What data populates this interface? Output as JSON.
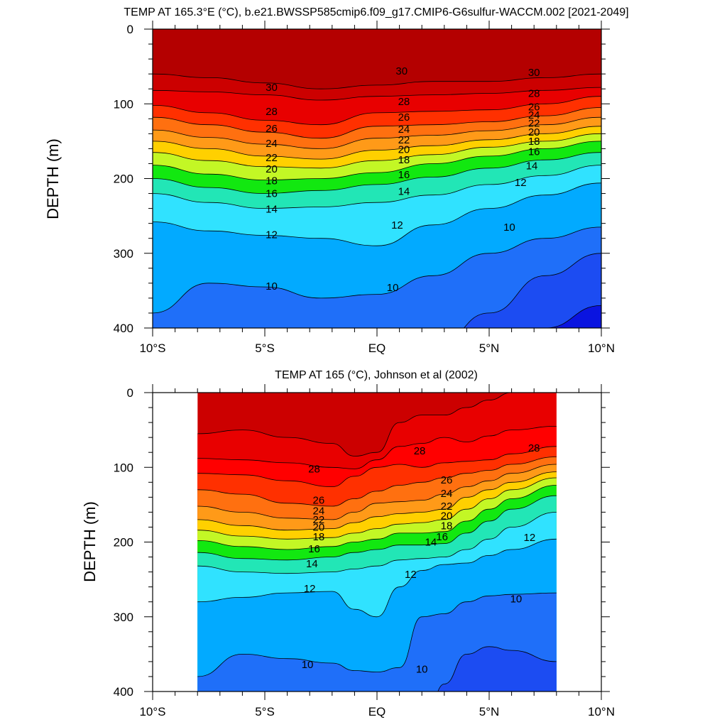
{
  "chart_data": [
    {
      "type": "heatmap",
      "subtype": "filled-contour-depth-latitude-section",
      "title": "TEMP AT 165.3°E (°C), b.e21.BWSSP585cmip6.f09_g17.CMIP6-G6sulfur-WACCM.002 [2021-2049]",
      "xlabel": "",
      "ylabel": "DEPTH (m)",
      "xlim": [
        -10,
        10
      ],
      "ylim": [
        400,
        0
      ],
      "y_inverted": true,
      "xticks": [
        -10,
        -5,
        0,
        5,
        10
      ],
      "xtick_labels": [
        "10°S",
        "5°S",
        "EQ",
        "5°N",
        "10°N"
      ],
      "yticks": [
        0,
        100,
        200,
        300,
        400
      ],
      "ytick_labels": [
        "0",
        "100",
        "200",
        "300",
        "400"
      ],
      "data_extent_x": [
        -10,
        10
      ],
      "contour_interval_degC": 1,
      "isotherm_depths_m": {
        "x": [
          -10,
          -7.5,
          -5,
          -2.5,
          0,
          2.5,
          5,
          7.5,
          10
        ],
        "T31": [
          60,
          65,
          72,
          80,
          75,
          70,
          70,
          65,
          60
        ],
        "T30": [
          82,
          84,
          88,
          95,
          90,
          88,
          86,
          82,
          78
        ],
        "T28": [
          102,
          112,
          122,
          128,
          112,
          110,
          108,
          100,
          90
        ],
        "T26": [
          118,
          128,
          138,
          146,
          130,
          128,
          124,
          116,
          105
        ],
        "T24": [
          135,
          145,
          154,
          160,
          146,
          142,
          136,
          128,
          118
        ],
        "T22": [
          150,
          160,
          170,
          174,
          162,
          156,
          148,
          140,
          130
        ],
        "T20": [
          165,
          176,
          184,
          186,
          176,
          168,
          158,
          150,
          140
        ],
        "T18": [
          182,
          194,
          202,
          200,
          192,
          180,
          170,
          160,
          150
        ],
        "T16": [
          200,
          212,
          220,
          216,
          208,
          198,
          186,
          175,
          165
        ],
        "T14": [
          220,
          232,
          240,
          238,
          232,
          222,
          208,
          196,
          182
        ],
        "T12": [
          258,
          270,
          276,
          280,
          290,
          262,
          240,
          222,
          206
        ],
        "T10": [
          380,
          340,
          345,
          360,
          355,
          330,
          300,
          280,
          265
        ],
        "T9": [
          800,
          800,
          800,
          800,
          800,
          430,
          380,
          330,
          300
        ],
        "T8": [
          800,
          800,
          800,
          800,
          800,
          800,
          800,
          400,
          370
        ]
      },
      "contour_labels": [
        {
          "value": "30",
          "x": -4.7,
          "y": 78
        },
        {
          "value": "28",
          "x": -4.7,
          "y": 110
        },
        {
          "value": "26",
          "x": -4.7,
          "y": 133
        },
        {
          "value": "24",
          "x": -4.7,
          "y": 153
        },
        {
          "value": "22",
          "x": -4.7,
          "y": 172
        },
        {
          "value": "20",
          "x": -4.7,
          "y": 187
        },
        {
          "value": "18",
          "x": -4.7,
          "y": 203
        },
        {
          "value": "16",
          "x": -4.7,
          "y": 220
        },
        {
          "value": "14",
          "x": -4.7,
          "y": 241
        },
        {
          "value": "12",
          "x": -4.7,
          "y": 275
        },
        {
          "value": "10",
          "x": -4.7,
          "y": 344
        },
        {
          "value": "30",
          "x": 1.1,
          "y": 56
        },
        {
          "value": "28",
          "x": 1.2,
          "y": 97
        },
        {
          "value": "26",
          "x": 1.2,
          "y": 118
        },
        {
          "value": "24",
          "x": 1.2,
          "y": 134
        },
        {
          "value": "22",
          "x": 1.2,
          "y": 148
        },
        {
          "value": "20",
          "x": 1.2,
          "y": 161
        },
        {
          "value": "18",
          "x": 1.2,
          "y": 175
        },
        {
          "value": "16",
          "x": 1.2,
          "y": 195
        },
        {
          "value": "14",
          "x": 1.2,
          "y": 217
        },
        {
          "value": "12",
          "x": 0.9,
          "y": 262
        },
        {
          "value": "10",
          "x": 0.7,
          "y": 346
        },
        {
          "value": "30",
          "x": 7.0,
          "y": 58
        },
        {
          "value": "28",
          "x": 7.0,
          "y": 86
        },
        {
          "value": "26",
          "x": 7.0,
          "y": 104
        },
        {
          "value": "24",
          "x": 7.0,
          "y": 115
        },
        {
          "value": "22",
          "x": 7.0,
          "y": 126
        },
        {
          "value": "20",
          "x": 7.0,
          "y": 138
        },
        {
          "value": "18",
          "x": 7.0,
          "y": 150
        },
        {
          "value": "16",
          "x": 7.0,
          "y": 164
        },
        {
          "value": "14",
          "x": 6.9,
          "y": 183
        },
        {
          "value": "12",
          "x": 6.4,
          "y": 205
        },
        {
          "value": "10",
          "x": 5.9,
          "y": 265
        }
      ]
    },
    {
      "type": "heatmap",
      "subtype": "filled-contour-depth-latitude-section",
      "title": "TEMP AT 165 (°C), Johnson et al (2002)",
      "xlabel": "",
      "ylabel": "DEPTH (m)",
      "xlim": [
        -10,
        10
      ],
      "ylim": [
        400,
        0
      ],
      "y_inverted": true,
      "xticks": [
        -10,
        -5,
        0,
        5,
        10
      ],
      "xtick_labels": [
        "10°S",
        "5°S",
        "EQ",
        "5°N",
        "10°N"
      ],
      "yticks": [
        0,
        100,
        200,
        300,
        400
      ],
      "ytick_labels": [
        "0",
        "100",
        "200",
        "300",
        "400"
      ],
      "data_extent_x": [
        -8,
        8
      ],
      "contour_interval_degC": 1,
      "isotherm_depths_m": {
        "x": [
          -8,
          -6,
          -4,
          -2,
          -1,
          0,
          1,
          2,
          3,
          4,
          5,
          6,
          8
        ],
        "T30": [
          55,
          50,
          60,
          68,
          85,
          80,
          40,
          30,
          30,
          20,
          10,
          0,
          0
        ],
        "T29": [
          88,
          90,
          94,
          100,
          102,
          90,
          72,
          68,
          60,
          66,
          58,
          50,
          45
        ],
        "T28": [
          108,
          110,
          118,
          126,
          112,
          100,
          96,
          100,
          94,
          92,
          90,
          82,
          72
        ],
        "T26": [
          130,
          136,
          148,
          152,
          142,
          132,
          124,
          120,
          114,
          108,
          104,
          96,
          86
        ],
        "T24": [
          152,
          160,
          168,
          170,
          160,
          148,
          146,
          144,
          136,
          126,
          118,
          108,
          96
        ],
        "T22": [
          170,
          178,
          184,
          182,
          174,
          166,
          162,
          160,
          156,
          140,
          130,
          120,
          106
        ],
        "T20": [
          184,
          192,
          196,
          194,
          188,
          182,
          176,
          174,
          170,
          156,
          142,
          130,
          114
        ],
        "T18": [
          198,
          206,
          210,
          206,
          200,
          196,
          188,
          188,
          186,
          172,
          156,
          142,
          124
        ],
        "T16": [
          214,
          222,
          224,
          220,
          214,
          210,
          204,
          204,
          202,
          188,
          172,
          156,
          138
        ],
        "T14": [
          232,
          240,
          242,
          240,
          236,
          232,
          224,
          222,
          220,
          210,
          196,
          180,
          160
        ],
        "T12": [
          280,
          274,
          268,
          266,
          290,
          300,
          260,
          238,
          230,
          228,
          218,
          210,
          196
        ],
        "T10": [
          380,
          350,
          356,
          362,
          372,
          374,
          368,
          300,
          296,
          280,
          272,
          270,
          268
        ],
        "T9": [
          800,
          800,
          800,
          800,
          800,
          800,
          800,
          800,
          390,
          350,
          340,
          345,
          360
        ]
      },
      "contour_labels": [
        {
          "value": "28",
          "x": 1.9,
          "y": 78
        },
        {
          "value": "28",
          "x": 7.0,
          "y": 74
        },
        {
          "value": "28",
          "x": -2.8,
          "y": 102
        },
        {
          "value": "26",
          "x": -2.6,
          "y": 144
        },
        {
          "value": "24",
          "x": -2.6,
          "y": 158
        },
        {
          "value": "22",
          "x": -2.6,
          "y": 170
        },
        {
          "value": "20",
          "x": -2.6,
          "y": 180
        },
        {
          "value": "18",
          "x": -2.6,
          "y": 193
        },
        {
          "value": "16",
          "x": -2.8,
          "y": 209
        },
        {
          "value": "14",
          "x": -2.9,
          "y": 229
        },
        {
          "value": "12",
          "x": -3.0,
          "y": 262
        },
        {
          "value": "10",
          "x": -3.1,
          "y": 364
        },
        {
          "value": "26",
          "x": 3.1,
          "y": 117
        },
        {
          "value": "24",
          "x": 3.1,
          "y": 135
        },
        {
          "value": "22",
          "x": 3.1,
          "y": 152
        },
        {
          "value": "20",
          "x": 3.1,
          "y": 165
        },
        {
          "value": "18",
          "x": 3.1,
          "y": 178
        },
        {
          "value": "16",
          "x": 2.9,
          "y": 193
        },
        {
          "value": "14",
          "x": 2.4,
          "y": 200
        },
        {
          "value": "12",
          "x": 6.8,
          "y": 194
        },
        {
          "value": "12",
          "x": 1.5,
          "y": 243
        },
        {
          "value": "10",
          "x": 6.2,
          "y": 276
        },
        {
          "value": "10",
          "x": 2.0,
          "y": 370
        }
      ]
    }
  ],
  "colormap": {
    "levels": [
      7,
      8,
      9,
      10,
      11,
      12,
      13,
      14,
      15,
      16,
      17,
      18,
      19,
      20,
      21,
      22,
      23,
      24,
      25,
      26,
      27,
      28,
      29,
      30,
      31,
      32
    ],
    "colors": [
      "#6a1fd0",
      "#0a14e0",
      "#1c4cf2",
      "#1f6ff9",
      "#0f90fa",
      "#02aaff",
      "#16c6ff",
      "#30e2ff",
      "#6af3ff",
      "#22e6b6",
      "#05cf58",
      "#12e810",
      "#62f53a",
      "#c3f725",
      "#fff000",
      "#ffd000",
      "#ffb000",
      "#ff9a18",
      "#ff8820",
      "#ff7010",
      "#ff5000",
      "#ff3000",
      "#ff0000",
      "#e80000",
      "#cc0000",
      "#b40000"
    ]
  }
}
